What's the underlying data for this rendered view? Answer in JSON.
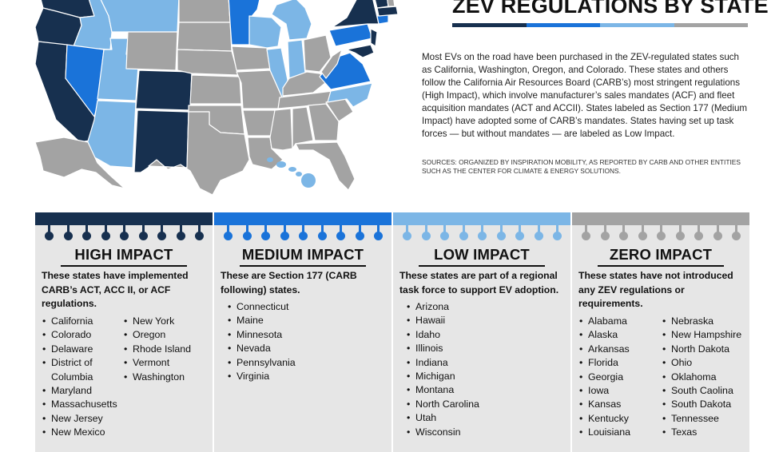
{
  "header": {
    "title": "ZEV REGULATIONS BY STATE",
    "intro": "Most EVs on the road have been purchased in the ZEV-regulated states such as California, Washington, Oregon, and Colorado. These states and others follow the California Air Resources Board (CARB’s) most stringent regulations (High Impact), which involve manufacturer’s sales mandates (ACF) and fleet acquisition mandates (ACT and ACCII). States labeled as Section 177 (Medium Impact) have adopted some of CARB’s mandates. States having set up task forces — but without mandates — are labeled as Low Impact.",
    "sources": "Sources: Organized by Inspiration Mobility, as reported by CARB and other entities such as the Center for Climate & Energy Solutions."
  },
  "colors": {
    "high": "#17304f",
    "medium": "#1a73d9",
    "low": "#7cb6e6",
    "zero": "#a3a3a3"
  },
  "categories": [
    {
      "title": "HIGH IMPACT",
      "description": "These states have implemented CARB’s ACT, ACC II, or ACF regulations.",
      "col1": [
        "California",
        "Colorado",
        "Delaware",
        "District of",
        "Columbia",
        "Maryland",
        "Massachusetts",
        "New Jersey",
        "New Mexico"
      ],
      "col2": [
        "New York",
        "Oregon",
        "Rhode Island",
        "Vermont",
        "Washington"
      ]
    },
    {
      "title": "MEDIUM IMPACT",
      "description": "These are Section 177 (CARB following) states.",
      "col1": [
        "Connecticut",
        "Maine",
        "Minnesota",
        "Nevada",
        "Pennsylvania",
        "Virginia"
      ]
    },
    {
      "title": "LOW IMPACT",
      "description": "These states are part of a regional task force to support EV adoption.",
      "col1": [
        "Arizona",
        "Hawaii",
        "Idaho",
        "Illinois",
        "Indiana",
        "Michigan",
        "Montana",
        "North Carolina",
        "Utah",
        "Wisconsin"
      ]
    },
    {
      "title": "ZERO IMPACT",
      "description": "These states have not introduced any ZEV regulations or requirements.",
      "col1": [
        "Alabama",
        "Alaska",
        "Arkansas",
        "Florida",
        "Georgia",
        "Iowa",
        "Kansas",
        "Kentucky",
        "Louisiana"
      ],
      "col2": [
        "Nebraska",
        "New Hampshire",
        "North Dakota",
        "Ohio",
        "Oklahoma",
        "South Caolina",
        "South Dakota",
        "Tennessee",
        "Texas"
      ]
    }
  ]
}
